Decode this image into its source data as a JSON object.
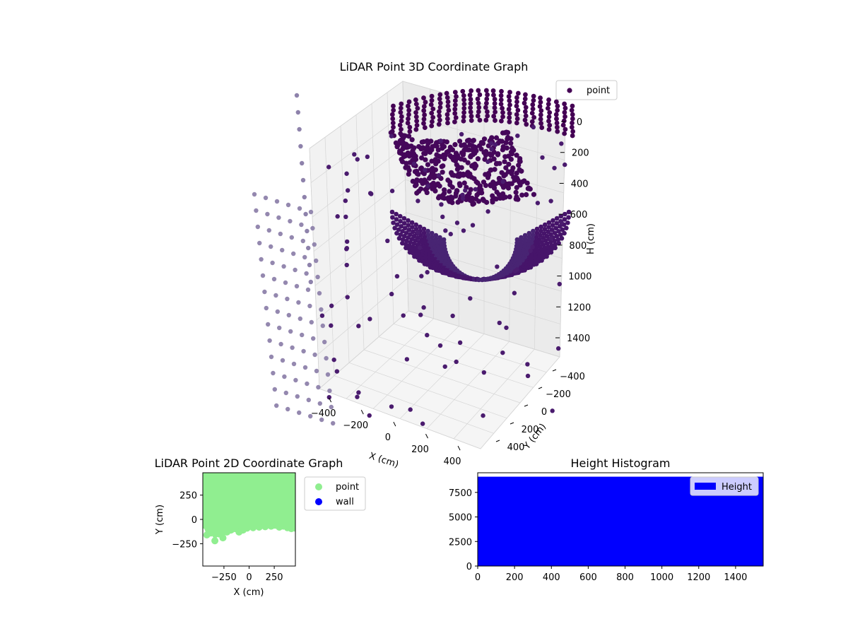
{
  "chart_data": [
    {
      "type": "scatter3d",
      "title": "LiDAR Point 3D Coordinate Graph",
      "xlabel": "X (cm)",
      "ylabel": "Y (cm)",
      "zlabel": "H (cm)",
      "x_ticks": [
        "−400",
        "−200",
        "0",
        "200",
        "400"
      ],
      "y_ticks": [
        "−400",
        "−200",
        "0",
        "200",
        "400"
      ],
      "z_ticks": [
        "0",
        "200",
        "400",
        "600",
        "800",
        "1000",
        "1200",
        "1400"
      ],
      "xlim": [
        -450,
        450
      ],
      "ylim": [
        -450,
        450
      ],
      "zlim": [
        0,
        1500
      ],
      "z_inverted": true,
      "legend": {
        "placement": "top-right",
        "entries": [
          "point"
        ]
      },
      "series": [
        {
          "name": "point",
          "color": "#440154",
          "description_of_shape": "bowl-shaped ring of dense points plus a sparse outer fan of points"
        }
      ],
      "grid": true
    },
    {
      "type": "scatter",
      "title": "LiDAR Point 2D Coordinate Graph",
      "xlabel": "X (cm)",
      "ylabel": "Y (cm)",
      "x_ticks": [
        "−250",
        "0",
        "250"
      ],
      "y_ticks": [
        "250",
        "0",
        "−250"
      ],
      "xlim": [
        -460,
        460
      ],
      "ylim": [
        -480,
        480
      ],
      "legend": {
        "placement": "outside-right",
        "entries": [
          "point",
          "wall"
        ]
      },
      "series": [
        {
          "name": "point",
          "color": "#90ee90",
          "region_top_y": 480,
          "lower_boundary": [
            [
              -460,
              -60
            ],
            [
              -420,
              -160
            ],
            [
              -380,
              -140
            ],
            [
              -340,
              -220
            ],
            [
              -300,
              -150
            ],
            [
              -260,
              -190
            ],
            [
              -220,
              -130
            ],
            [
              -180,
              -110
            ],
            [
              -140,
              -95
            ],
            [
              -100,
              -130
            ],
            [
              -60,
              -110
            ],
            [
              -20,
              -90
            ],
            [
              40,
              -85
            ],
            [
              100,
              -80
            ],
            [
              160,
              -75
            ],
            [
              220,
              -70
            ],
            [
              260,
              -60
            ],
            [
              300,
              -80
            ],
            [
              340,
              -70
            ],
            [
              380,
              -85
            ],
            [
              420,
              -95
            ],
            [
              460,
              -90
            ]
          ]
        },
        {
          "name": "wall",
          "color": "#0000ff",
          "values": []
        }
      ]
    },
    {
      "type": "histogram",
      "title": "Height Histogram",
      "xlabel": "",
      "ylabel": "",
      "x_ticks": [
        "0",
        "200",
        "400",
        "600",
        "800",
        "1000",
        "1200",
        "1400"
      ],
      "y_ticks": [
        "0",
        "2500",
        "5000",
        "7500"
      ],
      "xlim": [
        0,
        1550
      ],
      "ylim": [
        0,
        9500
      ],
      "legend": {
        "placement": "top-right",
        "entries": [
          "Height"
        ]
      },
      "series": [
        {
          "name": "Height",
          "color": "#0000ff",
          "bins": [
            [
              0,
              1550,
              9100
            ]
          ]
        }
      ]
    }
  ]
}
